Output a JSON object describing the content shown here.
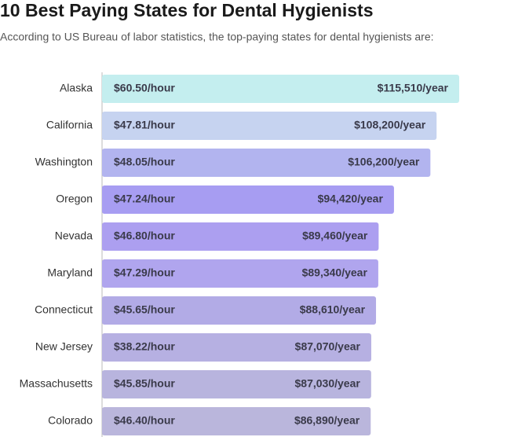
{
  "chart_data": {
    "type": "bar",
    "orientation": "horizontal",
    "title": "10 Best Paying States for Dental Hygienists",
    "subtitle": "According to US Bureau of labor statistics, the top-paying states for dental hygienists are:",
    "categories": [
      "Alaska",
      "California",
      "Washington",
      "Oregon",
      "Nevada",
      "Maryland",
      "Connecticut",
      "New Jersey",
      "Massachusetts",
      "Colorado"
    ],
    "values": [
      115510,
      108200,
      106200,
      94420,
      89460,
      89340,
      88610,
      87070,
      87030,
      86890
    ],
    "value_labels": [
      "$115,510/year",
      "$108,200/year",
      "$106,200/year",
      "$94,420/year",
      "$89,460/year",
      "$89,340/year",
      "$88,610/year",
      "$87,070/year",
      "$87,030/year",
      "$86,890/year"
    ],
    "hourly": {
      "values": [
        60.5,
        47.81,
        48.05,
        47.24,
        46.8,
        47.29,
        45.65,
        38.22,
        45.85,
        46.4
      ],
      "value_labels": [
        "$60.50/hour",
        "$47.81/hour",
        "$48.05/hour",
        "$47.24/hour",
        "$46.80/hour",
        "$47.29/hour",
        "$45.65/hour",
        "$38.22/hour",
        "$45.85/hour",
        "$46.40/hour"
      ]
    },
    "colors": [
      "#c4eeef",
      "#c6d3f0",
      "#b2b4ef",
      "#a79df2",
      "#ac9ff0",
      "#b0a5ee",
      "#b2abe6",
      "#b6b0e2",
      "#b8b4de",
      "#bab6dc"
    ]
  }
}
